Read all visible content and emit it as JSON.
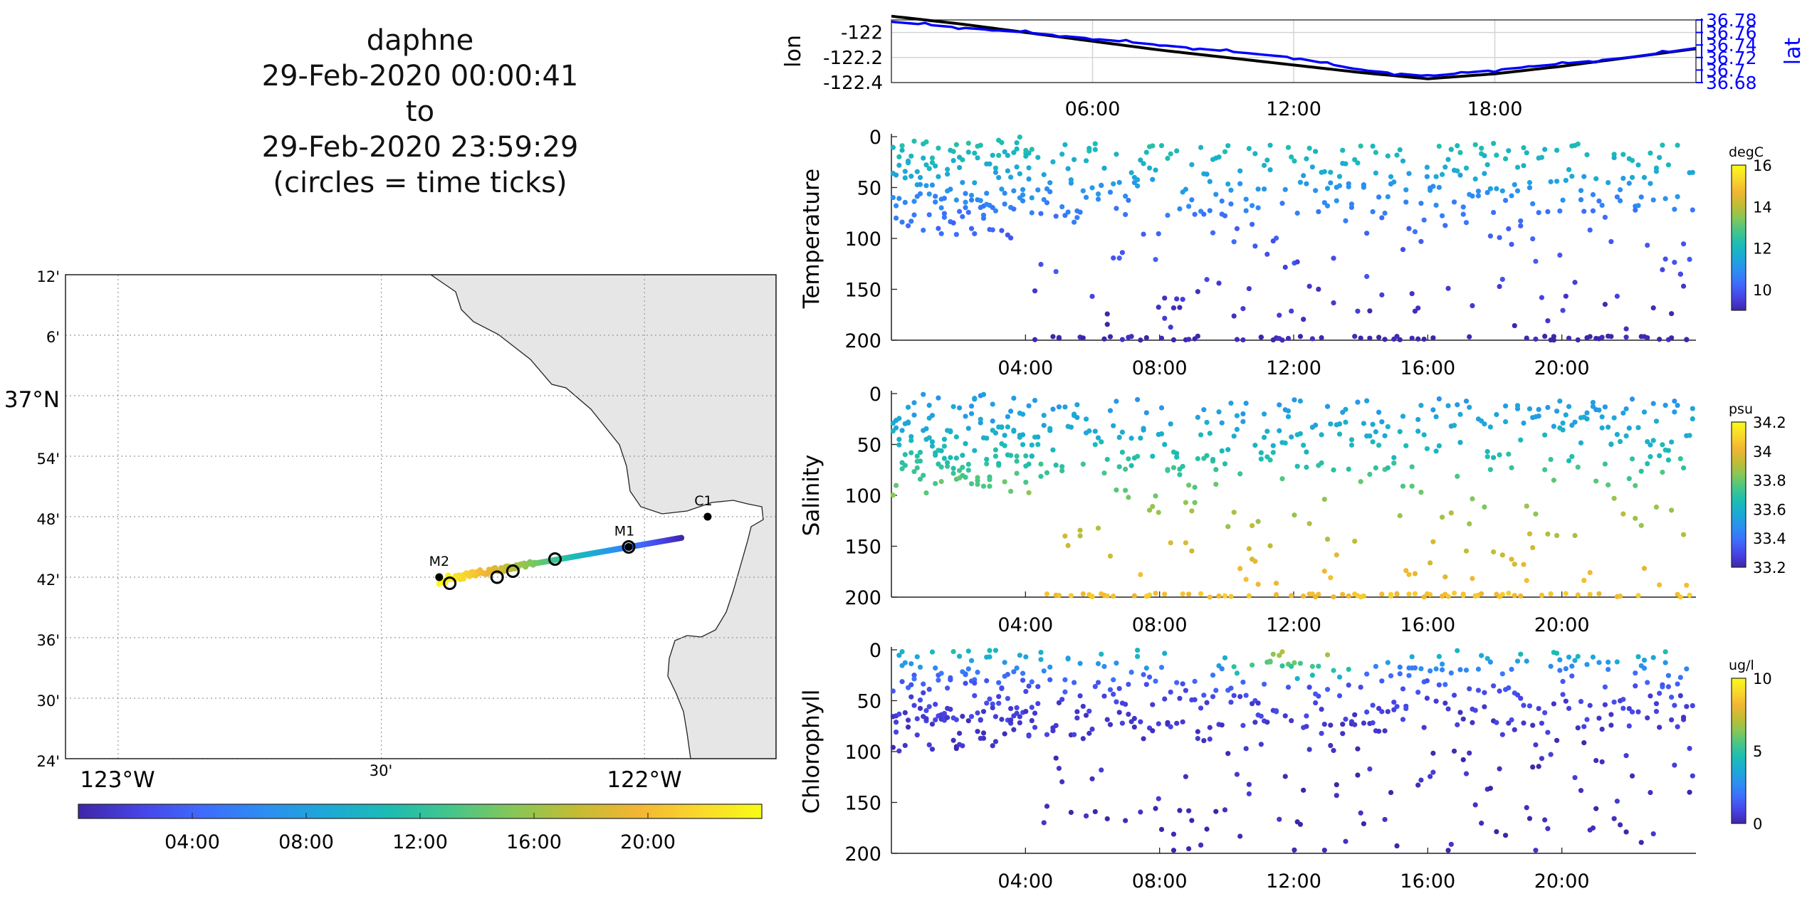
{
  "title": {
    "lines": [
      "daphne",
      "29-Feb-2020 00:00:41",
      "to",
      "29-Feb-2020 23:59:29",
      "(circles = time ticks)"
    ]
  },
  "map": {
    "lat_ticks": [
      "12'",
      "6'",
      "37°N",
      "54'",
      "48'",
      "42'",
      "36'",
      "30'",
      "24'"
    ],
    "lon_ticks": [
      "123°W",
      "30'",
      "122°W"
    ],
    "stations": [
      {
        "name": "M2",
        "lon": -122.39,
        "lat": 36.7
      },
      {
        "name": "M1",
        "lon": -122.03,
        "lat": 36.75
      },
      {
        "name": "C1",
        "lon": -121.88,
        "lat": 36.8
      }
    ],
    "time_circles": [
      {
        "lon": -122.37,
        "lat": 36.69
      },
      {
        "lon": -122.28,
        "lat": 36.7
      },
      {
        "lon": -122.25,
        "lat": 36.71
      },
      {
        "lon": -122.17,
        "lat": 36.73
      },
      {
        "lon": -122.03,
        "lat": 36.75
      }
    ],
    "colors": {
      "land": "#e6e6e6",
      "grid": "#999999",
      "coast": "#222222"
    }
  },
  "time_colorbar": {
    "ticks": [
      "04:00",
      "08:00",
      "12:00",
      "16:00",
      "20:00"
    ]
  },
  "track_panel": {
    "left_label": "lon",
    "right_label": "lat",
    "left_ticks": [
      "-122",
      "-122.2",
      "-122.4"
    ],
    "right_ticks": [
      "36.78",
      "36.76",
      "36.74",
      "36.72",
      "36.7",
      "36.68"
    ],
    "x_ticks": [
      "06:00",
      "12:00",
      "18:00"
    ],
    "colors": {
      "lon": "#000000",
      "lat": "#0000ff"
    }
  },
  "depth_axes": {
    "y_ticks": [
      "0",
      "50",
      "100",
      "150",
      "200"
    ],
    "x_ticks": [
      "04:00",
      "08:00",
      "12:00",
      "16:00",
      "20:00"
    ]
  },
  "panels": [
    {
      "id": "temperature",
      "ylabel": "Temperature",
      "cbar_unit": "degC",
      "cbar_ticks": [
        "16",
        "14",
        "12",
        "10"
      ]
    },
    {
      "id": "salinity",
      "ylabel": "Salinity",
      "cbar_unit": "psu",
      "cbar_ticks": [
        "34.2",
        "34",
        "33.8",
        "33.6",
        "33.4",
        "33.2"
      ]
    },
    {
      "id": "chlorophyll",
      "ylabel": "Chlorophyll",
      "cbar_unit": "ug/l",
      "cbar_ticks": [
        "10",
        "5",
        "0"
      ]
    }
  ],
  "colormap": [
    "#3e26a8",
    "#4744e6",
    "#3e6cfc",
    "#2c8ef2",
    "#1ca9d6",
    "#1bbcb4",
    "#45c68a",
    "#86c757",
    "#c3bc34",
    "#f2b633",
    "#f9d92c",
    "#f9fb15"
  ],
  "chart_data": [
    {
      "type": "line",
      "title": "",
      "xlabel": "",
      "ylabel": "lon",
      "ylabel_right": "lat",
      "x_ticks": [
        "06:00",
        "12:00",
        "18:00"
      ],
      "series": [
        {
          "name": "lon",
          "axis": "left",
          "x_hours": [
            0,
            2,
            4,
            6,
            8,
            10,
            12,
            14,
            16,
            18,
            20,
            22,
            24
          ],
          "values": [
            -121.87,
            -121.93,
            -122.0,
            -122.07,
            -122.14,
            -122.2,
            -122.26,
            -122.32,
            -122.37,
            -122.33,
            -122.27,
            -122.2,
            -122.13
          ]
        },
        {
          "name": "lat",
          "axis": "right",
          "x_hours": [
            0,
            2,
            4,
            6,
            8,
            10,
            12,
            14,
            16,
            18,
            20,
            22,
            24
          ],
          "values": [
            36.777,
            36.768,
            36.76,
            36.75,
            36.74,
            36.73,
            36.72,
            36.7,
            36.69,
            36.7,
            36.71,
            36.72,
            36.735
          ]
        }
      ],
      "ylim_left": [
        -122.4,
        -121.9
      ],
      "ylim_right": [
        36.68,
        36.78
      ],
      "xlim_hours": [
        0,
        24
      ]
    },
    {
      "type": "scatter",
      "ylabel": "Temperature",
      "colorbar_label": "degC",
      "clim": [
        9,
        16
      ],
      "xlim_hours": [
        0,
        24
      ],
      "ylim_depth": [
        0,
        200
      ],
      "x_ticks": [
        "04:00",
        "08:00",
        "12:00",
        "16:00",
        "20:00"
      ],
      "y_ticks": [
        "0",
        "50",
        "100",
        "150",
        "200"
      ],
      "profiles": [
        {
          "depth": 0,
          "value": 12.3
        },
        {
          "depth": 25,
          "value": 11.9
        },
        {
          "depth": 50,
          "value": 11.1
        },
        {
          "depth": 75,
          "value": 10.5
        },
        {
          "depth": 100,
          "value": 10.1
        },
        {
          "depth": 150,
          "value": 9.5
        },
        {
          "depth": 200,
          "value": 9.0
        }
      ]
    },
    {
      "type": "scatter",
      "ylabel": "Salinity",
      "colorbar_label": "psu",
      "clim": [
        33.2,
        34.2
      ],
      "xlim_hours": [
        0,
        24
      ],
      "ylim_depth": [
        0,
        200
      ],
      "x_ticks": [
        "04:00",
        "08:00",
        "12:00",
        "16:00",
        "20:00"
      ],
      "y_ticks": [
        "0",
        "50",
        "100",
        "150",
        "200"
      ],
      "profiles": [
        {
          "depth": 0,
          "value": 33.5
        },
        {
          "depth": 25,
          "value": 33.55
        },
        {
          "depth": 50,
          "value": 33.62
        },
        {
          "depth": 75,
          "value": 33.72
        },
        {
          "depth": 100,
          "value": 33.82
        },
        {
          "depth": 150,
          "value": 33.95
        },
        {
          "depth": 200,
          "value": 34.05
        }
      ]
    },
    {
      "type": "scatter",
      "ylabel": "Chlorophyll",
      "colorbar_label": "ug/l",
      "clim": [
        0,
        10
      ],
      "xlim_hours": [
        0,
        24
      ],
      "ylim_depth": [
        0,
        200
      ],
      "x_ticks": [
        "04:00",
        "08:00",
        "12:00",
        "16:00",
        "20:00"
      ],
      "y_ticks": [
        "0",
        "50",
        "100",
        "150",
        "200"
      ],
      "profiles": [
        {
          "depth": 0,
          "value": 4.5
        },
        {
          "depth": 10,
          "value": 3.5
        },
        {
          "depth": 25,
          "value": 1.8
        },
        {
          "depth": 50,
          "value": 0.8
        },
        {
          "depth": 100,
          "value": 0.4
        },
        {
          "depth": 150,
          "value": 0.2
        },
        {
          "depth": 200,
          "value": 0.1
        }
      ]
    }
  ]
}
